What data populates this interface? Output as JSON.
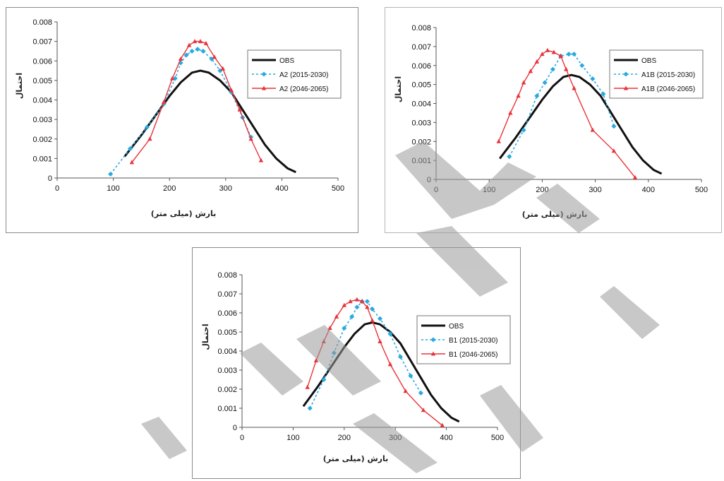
{
  "colors": {
    "obs": "#111111",
    "near": "#29a9e0",
    "far": "#e8333a",
    "watermark": "#9a9a9a"
  },
  "chart_data": [
    {
      "type": "line",
      "ylabel": "احتمال",
      "xlabel": "بارش (میلی متر)",
      "xlim": [
        0,
        500
      ],
      "ylim": [
        0,
        0.008
      ],
      "x_ticks": [
        "0",
        "100",
        "200",
        "300",
        "400",
        "500"
      ],
      "y_ticks": [
        "0",
        "0.001",
        "0.002",
        "0.003",
        "0.004",
        "0.005",
        "0.006",
        "0.007",
        "0.008"
      ],
      "grid": false,
      "legend": "right",
      "series": [
        {
          "name": "OBS",
          "color": "obs",
          "style": "thick",
          "x": [
            120,
            150,
            180,
            200,
            220,
            240,
            255,
            270,
            290,
            310,
            330,
            350,
            370,
            390,
            410,
            425
          ],
          "y": [
            0.0011,
            0.0022,
            0.0034,
            0.0042,
            0.0049,
            0.0054,
            0.0055,
            0.0054,
            0.005,
            0.0044,
            0.0035,
            0.0026,
            0.0017,
            0.001,
            0.0005,
            0.0003
          ]
        },
        {
          "name": "A2 (2015-2030)",
          "color": "near",
          "style": "dotted",
          "x": [
            95,
            130,
            160,
            190,
            210,
            220,
            230,
            240,
            250,
            260,
            275,
            290,
            310,
            330,
            345
          ],
          "y": [
            0.0002,
            0.0015,
            0.0026,
            0.0038,
            0.0051,
            0.0059,
            0.0063,
            0.0065,
            0.0066,
            0.0065,
            0.0061,
            0.0055,
            0.0044,
            0.0031,
            0.0021
          ]
        },
        {
          "name": "A2 (2046-2065)",
          "color": "far",
          "style": "solid",
          "x": [
            133,
            165,
            190,
            205,
            220,
            235,
            245,
            255,
            265,
            280,
            295,
            310,
            325,
            345,
            363
          ],
          "y": [
            0.0008,
            0.002,
            0.0039,
            0.0051,
            0.0061,
            0.0068,
            0.007,
            0.007,
            0.0069,
            0.0062,
            0.0056,
            0.0045,
            0.0035,
            0.002,
            0.0009
          ]
        }
      ]
    },
    {
      "type": "line",
      "ylabel": "احتمال",
      "xlabel": "بارش (میلی متر)",
      "xlim": [
        0,
        500
      ],
      "ylim": [
        0,
        0.008
      ],
      "x_ticks": [
        "0",
        "100",
        "200",
        "300",
        "400",
        "500"
      ],
      "y_ticks": [
        "0",
        "0.001",
        "0.002",
        "0.003",
        "0.004",
        "0.005",
        "0.006",
        "0.007",
        "0.008"
      ],
      "grid": false,
      "legend": "right",
      "series": [
        {
          "name": "OBS",
          "color": "obs",
          "style": "thick",
          "x": [
            120,
            150,
            180,
            200,
            220,
            240,
            255,
            270,
            290,
            310,
            330,
            350,
            370,
            390,
            410,
            425
          ],
          "y": [
            0.0011,
            0.0022,
            0.0034,
            0.0042,
            0.0049,
            0.0054,
            0.0055,
            0.0054,
            0.005,
            0.0044,
            0.0035,
            0.0026,
            0.0017,
            0.001,
            0.0005,
            0.0003
          ]
        },
        {
          "name": "A1B (2015-2030)",
          "color": "near",
          "style": "dotted",
          "x": [
            138,
            165,
            190,
            205,
            220,
            235,
            250,
            260,
            275,
            295,
            315,
            335
          ],
          "y": [
            0.0012,
            0.0026,
            0.0044,
            0.0051,
            0.0058,
            0.0065,
            0.0066,
            0.0066,
            0.006,
            0.0053,
            0.0045,
            0.0028
          ]
        },
        {
          "name": "A1B (2046-2065)",
          "color": "far",
          "style": "solid",
          "x": [
            118,
            140,
            155,
            165,
            178,
            190,
            200,
            210,
            222,
            235,
            245,
            260,
            295,
            335,
            375
          ],
          "y": [
            0.002,
            0.0035,
            0.0044,
            0.0051,
            0.0057,
            0.0062,
            0.0066,
            0.0068,
            0.0067,
            0.0065,
            0.0058,
            0.0048,
            0.0026,
            0.0015,
            0.0001
          ]
        }
      ]
    },
    {
      "type": "line",
      "ylabel": "احتمال",
      "xlabel": "بارش (میلی متر)",
      "xlim": [
        0,
        500
      ],
      "ylim": [
        0,
        0.008
      ],
      "x_ticks": [
        "0",
        "100",
        "200",
        "300",
        "400",
        "500"
      ],
      "y_ticks": [
        "0",
        "0.001",
        "0.002",
        "0.003",
        "0.004",
        "0.005",
        "0.006",
        "0.007",
        "0.008"
      ],
      "grid": false,
      "legend": "right",
      "series": [
        {
          "name": "OBS",
          "color": "obs",
          "style": "thick",
          "x": [
            120,
            150,
            180,
            200,
            220,
            240,
            255,
            270,
            290,
            310,
            330,
            350,
            370,
            390,
            410,
            425
          ],
          "y": [
            0.0011,
            0.0022,
            0.0034,
            0.0042,
            0.0049,
            0.0054,
            0.0055,
            0.0054,
            0.005,
            0.0044,
            0.0035,
            0.0026,
            0.0017,
            0.001,
            0.0005,
            0.0003
          ]
        },
        {
          "name": "B1 (2015-2030)",
          "color": "near",
          "style": "dotted",
          "x": [
            133,
            160,
            180,
            200,
            215,
            225,
            235,
            245,
            255,
            270,
            290,
            310,
            330,
            350
          ],
          "y": [
            0.001,
            0.0025,
            0.0039,
            0.0052,
            0.0058,
            0.0063,
            0.0066,
            0.0066,
            0.0062,
            0.0057,
            0.0049,
            0.0037,
            0.0027,
            0.0018
          ]
        },
        {
          "name": "B1 (2046-2065)",
          "color": "far",
          "style": "solid",
          "x": [
            128,
            145,
            160,
            172,
            185,
            200,
            212,
            225,
            235,
            245,
            255,
            270,
            290,
            320,
            355,
            392
          ],
          "y": [
            0.0021,
            0.0035,
            0.0045,
            0.0052,
            0.0058,
            0.0064,
            0.0066,
            0.0067,
            0.0066,
            0.0063,
            0.0056,
            0.0045,
            0.0033,
            0.0019,
            0.0009,
            0.0001
          ]
        }
      ]
    }
  ]
}
